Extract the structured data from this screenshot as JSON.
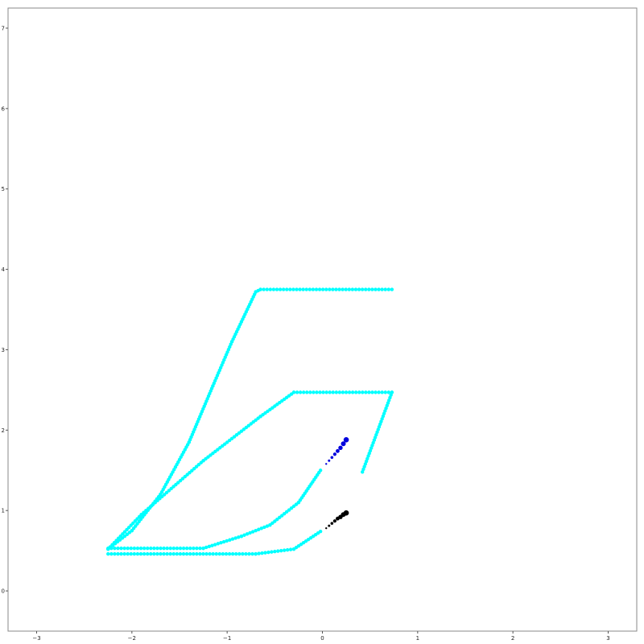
{
  "chart_data": {
    "type": "scatter",
    "title": "",
    "xlabel": "",
    "ylabel": "",
    "xlim": [
      -3.3,
      3.3
    ],
    "ylim": [
      -0.5,
      7.25
    ],
    "xticks": [
      -3,
      -2,
      -1,
      0,
      1,
      2,
      3
    ],
    "yticks": [
      0,
      1,
      2,
      3,
      4,
      5,
      6,
      7
    ],
    "grid": false,
    "legend": "none",
    "series": [
      {
        "color": "#00ffff",
        "marker_radius": 2.2,
        "polylines": [
          [
            [
              -2.25,
              0.52
            ],
            [
              -2.0,
              0.75
            ],
            [
              -1.7,
              1.2
            ],
            [
              -1.4,
              1.85
            ],
            [
              -1.15,
              2.55
            ],
            [
              -0.95,
              3.1
            ],
            [
              -0.7,
              3.72
            ],
            [
              -0.65,
              3.75
            ],
            [
              0.73,
              3.75
            ]
          ],
          [
            [
              -2.25,
              0.52
            ],
            [
              -1.9,
              0.95
            ],
            [
              -1.25,
              1.62
            ],
            [
              -0.65,
              2.17
            ],
            [
              -0.3,
              2.47
            ],
            [
              0.73,
              2.47
            ],
            [
              0.42,
              1.48
            ]
          ],
          [
            [
              -2.25,
              0.53
            ],
            [
              -1.25,
              0.53
            ],
            [
              -0.85,
              0.68
            ],
            [
              -0.55,
              0.82
            ],
            [
              -0.25,
              1.1
            ],
            [
              -0.02,
              1.5
            ]
          ],
          [
            [
              -2.25,
              0.46
            ],
            [
              -0.7,
              0.46
            ],
            [
              -0.3,
              0.52
            ],
            [
              -0.02,
              0.74
            ]
          ]
        ]
      },
      {
        "color": "#0000dd",
        "points": [
          [
            0.04,
            1.58
          ],
          [
            0.07,
            1.62
          ],
          [
            0.1,
            1.66
          ],
          [
            0.13,
            1.7
          ],
          [
            0.16,
            1.74
          ],
          [
            0.19,
            1.78
          ],
          [
            0.22,
            1.83
          ],
          [
            0.25,
            1.88
          ]
        ],
        "sizes": [
          1.2,
          1.5,
          1.8,
          2.1,
          2.4,
          2.7,
          3.0,
          3.3
        ]
      },
      {
        "color": "#000000",
        "points": [
          [
            0.04,
            0.78
          ],
          [
            0.07,
            0.81
          ],
          [
            0.1,
            0.84
          ],
          [
            0.13,
            0.87
          ],
          [
            0.16,
            0.9
          ],
          [
            0.19,
            0.92
          ],
          [
            0.22,
            0.95
          ],
          [
            0.25,
            0.97
          ]
        ],
        "sizes": [
          1.2,
          1.5,
          1.8,
          2.1,
          2.4,
          2.7,
          3.0,
          3.3
        ]
      }
    ]
  }
}
